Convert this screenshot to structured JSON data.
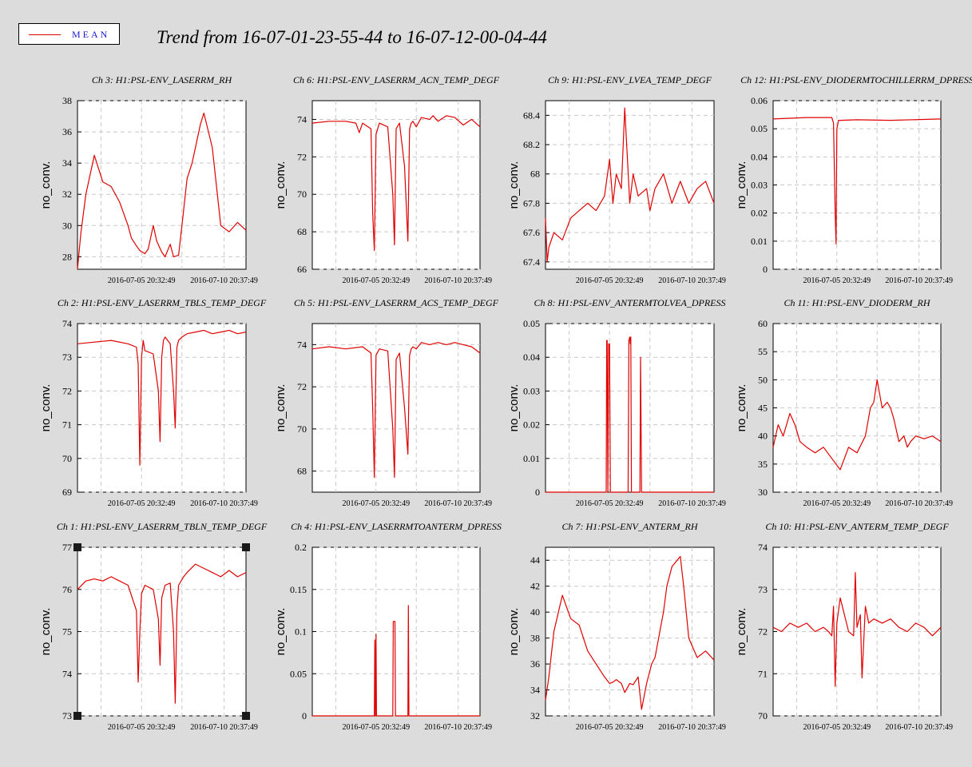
{
  "legend": {
    "label": "MEAN",
    "color": "#e00000"
  },
  "title": "Trend from 16-07-01-23-55-44 to 16-07-12-00-04-44",
  "colors": {
    "series": "#e00000",
    "background": "#dcdcdc",
    "grid": "#c8c8c8",
    "selection": "#1a1a1a"
  },
  "chart_data": [
    {
      "type": "line",
      "title": "Ch 3: H1:PSL-ENV_LASERRM_RH",
      "ylabel": "no_conv.",
      "ylim": [
        27.2,
        38
      ],
      "yticks": [
        "28",
        "30",
        "32",
        "34",
        "36",
        "38"
      ],
      "xticks": [
        "2016-07-05 20:32:49",
        "2016-07-10 20:37:49"
      ],
      "series": [
        {
          "x": [
            0,
            2,
            5,
            10,
            15,
            20,
            25,
            30,
            32,
            35,
            37,
            40,
            42,
            45,
            47,
            50,
            52,
            55,
            57,
            60,
            62,
            65,
            68,
            70,
            73,
            75,
            80,
            85,
            90,
            95,
            100
          ],
          "y": [
            27.2,
            29.5,
            32,
            34.5,
            32.8,
            32.5,
            31.5,
            30,
            29.2,
            28.7,
            28.4,
            28.2,
            28.5,
            30,
            29,
            28.3,
            28,
            28.8,
            28,
            28.1,
            30,
            33,
            34,
            35,
            36.5,
            37.2,
            35,
            30,
            29.6,
            30.2,
            29.7
          ]
        }
      ]
    },
    {
      "type": "line",
      "title": "Ch 6: H1:PSL-ENV_LASERRM_ACN_TEMP_DEGF",
      "ylabel": "no_conv.",
      "ylim": [
        66,
        75
      ],
      "yticks": [
        "66",
        "68",
        "70",
        "72",
        "74"
      ],
      "xticks": [
        "2016-07-05 20:32:49",
        "2016-07-10 20:37:49"
      ],
      "series": [
        {
          "x": [
            0,
            10,
            20,
            26,
            28,
            30,
            35,
            36,
            37,
            38,
            40,
            45,
            48,
            49,
            50,
            52,
            55,
            57,
            58,
            59,
            60,
            62,
            65,
            70,
            72,
            75,
            80,
            85,
            90,
            95,
            100
          ],
          "y": [
            73.8,
            73.9,
            73.9,
            73.8,
            73.3,
            73.8,
            73.5,
            69,
            67,
            73.2,
            73.8,
            73.6,
            70,
            67.3,
            73.5,
            73.8,
            71.5,
            67.5,
            73.5,
            73.8,
            73.9,
            73.6,
            74.1,
            74,
            74.2,
            73.9,
            74.2,
            74.1,
            73.7,
            74,
            73.6
          ]
        }
      ]
    },
    {
      "type": "line",
      "title": "Ch 9: H1:PSL-ENV_LVEA_TEMP_DEGF",
      "ylabel": "no_conv.",
      "ylim": [
        67.35,
        68.5
      ],
      "yticks": [
        "67.4",
        "67.6",
        "67.8",
        "68",
        "68.2",
        "68.4"
      ],
      "xticks": [
        "2016-07-05 20:32:49",
        "2016-07-10 20:37:49"
      ],
      "series": [
        {
          "x": [
            0,
            1,
            2,
            5,
            10,
            15,
            20,
            25,
            30,
            35,
            38,
            40,
            42,
            45,
            47,
            50,
            52,
            55,
            60,
            62,
            65,
            70,
            75,
            80,
            85,
            90,
            95,
            100
          ],
          "y": [
            67.7,
            67.4,
            67.5,
            67.6,
            67.55,
            67.7,
            67.75,
            67.8,
            67.75,
            67.85,
            68.1,
            67.8,
            68,
            67.9,
            68.45,
            67.8,
            68,
            67.85,
            67.9,
            67.75,
            67.9,
            68,
            67.8,
            67.95,
            67.8,
            67.9,
            67.95,
            67.8
          ]
        }
      ]
    },
    {
      "type": "line",
      "title": "Ch 12: H1:PSL-ENV_DIODERMTOCHILLERRM_DPRESS",
      "ylabel": "no_conv.",
      "ylim": [
        0,
        0.06
      ],
      "yticks": [
        "0",
        "0.01",
        "0.02",
        "0.03",
        "0.04",
        "0.05",
        "0.06"
      ],
      "xticks": [
        "2016-07-05 20:32:49",
        "2016-07-10 20:37:49"
      ],
      "series": [
        {
          "x": [
            0,
            20,
            35,
            36,
            37,
            37.5,
            38,
            39,
            40,
            50,
            70,
            100
          ],
          "y": [
            0.0535,
            0.054,
            0.054,
            0.052,
            0.02,
            0.009,
            0.05,
            0.053,
            0.053,
            0.0532,
            0.053,
            0.0535
          ]
        }
      ]
    },
    {
      "type": "line",
      "title": "Ch 2: H1:PSL-ENV_LASERRM_TBLS_TEMP_DEGF",
      "ylabel": "no_conv.",
      "ylim": [
        69,
        74
      ],
      "yticks": [
        "69",
        "70",
        "71",
        "72",
        "73",
        "74"
      ],
      "xticks": [
        "2016-07-05 20:32:49",
        "2016-07-10 20:37:49"
      ],
      "series": [
        {
          "x": [
            0,
            10,
            20,
            30,
            35,
            36,
            37,
            38,
            39,
            40,
            45,
            48,
            49,
            50,
            51,
            52,
            55,
            57,
            58,
            59,
            60,
            62,
            65,
            70,
            75,
            80,
            85,
            90,
            95,
            100
          ],
          "y": [
            73.4,
            73.45,
            73.5,
            73.4,
            73.3,
            72.8,
            69.8,
            73,
            73.5,
            73.2,
            73.1,
            72,
            70.5,
            73,
            73.5,
            73.6,
            73.4,
            72,
            70.9,
            73.3,
            73.5,
            73.6,
            73.7,
            73.75,
            73.8,
            73.7,
            73.75,
            73.8,
            73.7,
            73.75
          ]
        }
      ]
    },
    {
      "type": "line",
      "title": "Ch 5: H1:PSL-ENV_LASERRM_ACS_TEMP_DEGF",
      "ylabel": "no_conv.",
      "ylim": [
        67,
        75
      ],
      "yticks": [
        "68",
        "70",
        "72",
        "74"
      ],
      "xticks": [
        "2016-07-05 20:32:49",
        "2016-07-10 20:37:49"
      ],
      "series": [
        {
          "x": [
            0,
            10,
            20,
            30,
            35,
            36,
            37,
            38,
            40,
            45,
            48,
            49,
            50,
            52,
            55,
            57,
            58,
            59,
            60,
            62,
            65,
            70,
            75,
            80,
            85,
            90,
            95,
            100
          ],
          "y": [
            73.8,
            73.9,
            73.8,
            73.9,
            73.6,
            71,
            67.7,
            73.5,
            73.8,
            73.7,
            70,
            67.7,
            73.3,
            73.6,
            71,
            68.8,
            73.5,
            73.8,
            73.9,
            73.8,
            74.1,
            74,
            74.1,
            74,
            74.1,
            74,
            73.9,
            73.6
          ]
        }
      ]
    },
    {
      "type": "line",
      "title": "Ch 8: H1:PSL-ENV_ANTERMTOLVEA_DPRESS",
      "ylabel": "no_conv.",
      "ylim": [
        0,
        0.05
      ],
      "yticks": [
        "0",
        "0.01",
        "0.02",
        "0.03",
        "0.04",
        "0.05"
      ],
      "xticks": [
        "2016-07-05 20:32:49",
        "2016-07-10 20:37:49"
      ],
      "series": [
        {
          "x": [
            0,
            36,
            36.3,
            36.6,
            37,
            37.5,
            38,
            38.5,
            49,
            49.5,
            50,
            50.3,
            50.6,
            51,
            55,
            56,
            56.4,
            57,
            100
          ],
          "y": [
            0,
            0,
            0.045,
            0.045,
            0,
            0.044,
            0.044,
            0,
            0,
            0.045,
            0.046,
            0.044,
            0.046,
            0,
            0,
            0,
            0.04,
            0,
            0
          ]
        }
      ]
    },
    {
      "type": "line",
      "title": "Ch 11: H1:PSL-ENV_DIODERM_RH",
      "ylabel": "no_conv.",
      "ylim": [
        30,
        60
      ],
      "yticks": [
        "30",
        "35",
        "40",
        "45",
        "50",
        "55",
        "60"
      ],
      "xticks": [
        "2016-07-05 20:32:49",
        "2016-07-10 20:37:49"
      ],
      "series": [
        {
          "x": [
            0,
            3,
            6,
            10,
            13,
            16,
            20,
            25,
            30,
            35,
            40,
            45,
            50,
            55,
            58,
            60,
            62,
            65,
            68,
            70,
            72,
            75,
            78,
            80,
            82,
            85,
            90,
            95,
            100
          ],
          "y": [
            38,
            42,
            40,
            44,
            42,
            39,
            38,
            37,
            38,
            36,
            34,
            38,
            37,
            40,
            45,
            46,
            50,
            45,
            46,
            45,
            43,
            39,
            40,
            38,
            39,
            40,
            39.5,
            40,
            39
          ]
        }
      ]
    },
    {
      "type": "line",
      "title": "Ch 1: H1:PSL-ENV_LASERRM_TBLN_TEMP_DEGF",
      "ylabel": "no_conv.",
      "ylim": [
        73,
        77
      ],
      "yticks": [
        "73",
        "74",
        "75",
        "76",
        "77"
      ],
      "xticks": [
        "2016-07-05 20:32:49",
        "2016-07-10 20:37:49"
      ],
      "series": [
        {
          "x": [
            0,
            5,
            10,
            15,
            20,
            25,
            30,
            35,
            36,
            37,
            38,
            39,
            40,
            45,
            48,
            49,
            50,
            52,
            55,
            57,
            58,
            59,
            60,
            63,
            65,
            70,
            75,
            80,
            85,
            90,
            95,
            100
          ],
          "y": [
            76,
            76.2,
            76.25,
            76.2,
            76.3,
            76.2,
            76.1,
            75.5,
            73.8,
            75,
            75.9,
            76,
            76.1,
            76,
            75.3,
            74.2,
            75.8,
            76.1,
            76.15,
            75,
            73.3,
            75.5,
            76.1,
            76.3,
            76.4,
            76.6,
            76.5,
            76.4,
            76.3,
            76.45,
            76.3,
            76.4
          ]
        }
      ]
    },
    {
      "type": "line",
      "title": "Ch 4: H1:PSL-ENV_LASERRMTOANTERM_DPRESS",
      "ylabel": "no_conv.",
      "ylim": [
        0,
        0.2
      ],
      "yticks": [
        "0",
        "0.05",
        "0.1",
        "0.15",
        "0.2"
      ],
      "xticks": [
        "2016-07-05 20:32:49",
        "2016-07-10 20:37:49"
      ],
      "series": [
        {
          "x": [
            0,
            35,
            37,
            37.3,
            37.6,
            38,
            38.3,
            38.6,
            39,
            48,
            48.3,
            48.6,
            49,
            49.3,
            49.6,
            50,
            57,
            57.3,
            57.6,
            58,
            100
          ],
          "y": [
            0,
            0,
            0,
            0.09,
            0,
            0.097,
            0,
            0,
            0,
            0,
            0.112,
            0.112,
            0.112,
            0.112,
            0,
            0,
            0,
            0.131,
            0,
            0,
            0
          ]
        }
      ]
    },
    {
      "type": "line",
      "title": "Ch 7: H1:PSL-ENV_ANTERM_RH",
      "ylabel": "no_conv.",
      "ylim": [
        32,
        45
      ],
      "yticks": [
        "32",
        "34",
        "36",
        "38",
        "40",
        "42",
        "44"
      ],
      "xticks": [
        "2016-07-05 20:32:49",
        "2016-07-10 20:37:49"
      ],
      "series": [
        {
          "x": [
            0,
            2,
            5,
            10,
            15,
            20,
            25,
            30,
            35,
            38,
            40,
            42,
            45,
            47,
            50,
            52,
            55,
            57,
            60,
            63,
            65,
            70,
            72,
            75,
            80,
            82,
            85,
            90,
            95,
            100
          ],
          "y": [
            33.2,
            35,
            38.5,
            41.3,
            39.5,
            39,
            37,
            36,
            35,
            34.5,
            34.6,
            34.8,
            34.5,
            33.8,
            34.5,
            34.4,
            35,
            32.5,
            34.5,
            36,
            36.5,
            40,
            42,
            43.5,
            44.3,
            42,
            38,
            36.5,
            37,
            36.3
          ]
        }
      ]
    },
    {
      "type": "line",
      "title": "Ch 10: H1:PSL-ENV_ANTERM_TEMP_DEGF",
      "ylabel": "no_conv.",
      "ylim": [
        70,
        74
      ],
      "yticks": [
        "70",
        "71",
        "72",
        "73",
        "74"
      ],
      "xticks": [
        "2016-07-05 20:32:49",
        "2016-07-10 20:37:49"
      ],
      "series": [
        {
          "x": [
            0,
            5,
            10,
            15,
            20,
            25,
            30,
            33,
            35,
            36,
            37,
            38,
            40,
            45,
            48,
            49,
            50,
            52,
            53,
            55,
            57,
            60,
            65,
            70,
            75,
            80,
            85,
            90,
            95,
            100
          ],
          "y": [
            72.1,
            72,
            72.2,
            72.1,
            72.2,
            72,
            72.1,
            72,
            71.9,
            72.6,
            70.7,
            72.2,
            72.8,
            72,
            71.9,
            73.4,
            72.1,
            72.4,
            70.9,
            72.6,
            72.2,
            72.3,
            72.2,
            72.3,
            72.1,
            72,
            72.2,
            72.1,
            71.9,
            72.1
          ]
        }
      ]
    }
  ]
}
